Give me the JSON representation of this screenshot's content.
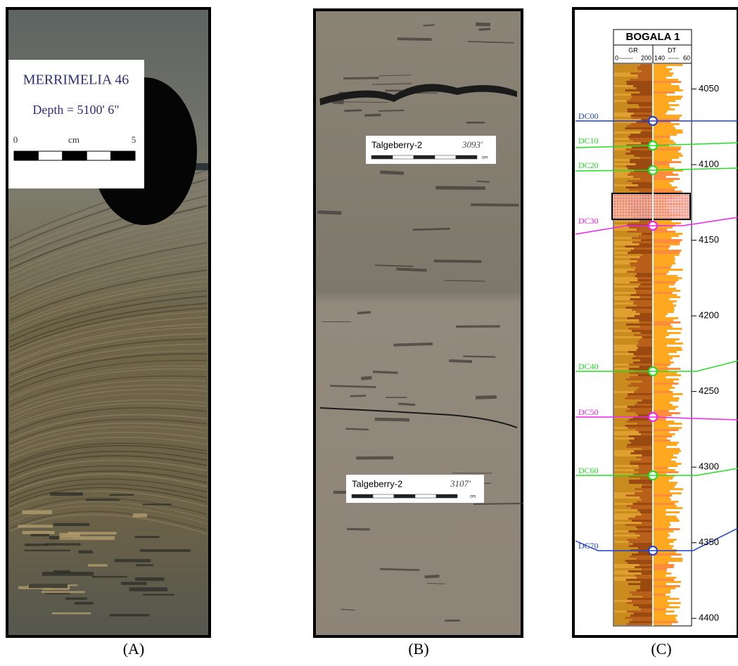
{
  "panel_a": {
    "title": "MERRIMELIA 46",
    "depth": "Depth = 5100' 6\"",
    "scale_start": "0",
    "scale_unit": "cm",
    "scale_end": "5",
    "caption": "(A)"
  },
  "panel_b": {
    "labels": [
      {
        "well": "Talgeberry-2",
        "depth": "3093'",
        "unit": "cm"
      },
      {
        "well": "Talgeberry-2",
        "depth": "3107'",
        "unit": "cm"
      }
    ],
    "caption": "(B)"
  },
  "panel_c": {
    "well": "BOGALA 1",
    "tracks": [
      {
        "name": "GR",
        "min": "0",
        "max": "200"
      },
      {
        "name": "DT",
        "min": "140",
        "max": "60"
      }
    ],
    "depth_lim": [
      4033,
      4405
    ],
    "depth_ticks": [
      4050,
      4100,
      4150,
      4200,
      4250,
      4300,
      4350,
      4400
    ],
    "tops": [
      {
        "name": "DC00",
        "color": "#1f3fd0"
      },
      {
        "name": "DC10",
        "color": "#22dd22"
      },
      {
        "name": "DC20",
        "color": "#22dd22"
      },
      {
        "name": "DC30",
        "color": "#ee22ee"
      },
      {
        "name": "DC40",
        "color": "#22dd22"
      },
      {
        "name": "DC50",
        "color": "#ee22ee"
      },
      {
        "name": "DC60",
        "color": "#22dd22"
      },
      {
        "name": "DC70",
        "color": "#1f3fd0"
      }
    ],
    "caption": "(C)"
  }
}
